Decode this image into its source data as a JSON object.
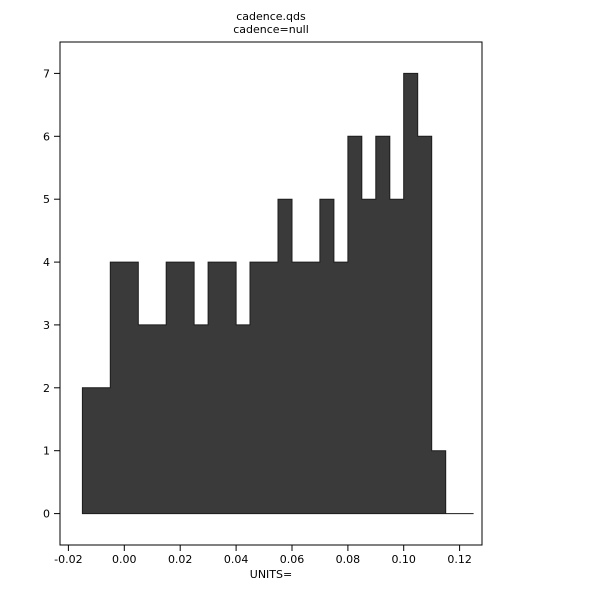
{
  "title": {
    "line1": "cadence.qds",
    "line2": "cadence=null"
  },
  "chart_data": {
    "type": "bar",
    "subtype": "histogram",
    "title": "cadence.qds",
    "subtitle": "cadence=null",
    "xlabel": "UNITS=",
    "ylabel": "",
    "bin_width": 0.005,
    "bin_edges": [
      -0.015,
      -0.01,
      -0.005,
      0.0,
      0.005,
      0.01,
      0.015,
      0.02,
      0.025,
      0.03,
      0.035,
      0.04,
      0.045,
      0.05,
      0.055,
      0.06,
      0.065,
      0.07,
      0.075,
      0.08,
      0.085,
      0.09,
      0.095,
      0.1,
      0.105,
      0.11,
      0.115,
      0.12,
      0.125
    ],
    "values": [
      2,
      2,
      4,
      4,
      3,
      3,
      4,
      4,
      3,
      4,
      4,
      3,
      4,
      4,
      5,
      4,
      4,
      5,
      4,
      6,
      5,
      6,
      5,
      7,
      6,
      1,
      0,
      0
    ],
    "x_ticks": [
      {
        "value": -0.02,
        "label": "-0.02"
      },
      {
        "value": 0.0,
        "label": "0.00"
      },
      {
        "value": 0.02,
        "label": "0.02"
      },
      {
        "value": 0.04,
        "label": "0.04"
      },
      {
        "value": 0.06,
        "label": "0.06"
      },
      {
        "value": 0.08,
        "label": "0.08"
      },
      {
        "value": 0.1,
        "label": "0.10"
      },
      {
        "value": 0.12,
        "label": "0.12"
      }
    ],
    "y_ticks": [
      {
        "value": 0,
        "label": "0"
      },
      {
        "value": 1,
        "label": "1"
      },
      {
        "value": 2,
        "label": "2"
      },
      {
        "value": 3,
        "label": "3"
      },
      {
        "value": 4,
        "label": "4"
      },
      {
        "value": 5,
        "label": "5"
      },
      {
        "value": 6,
        "label": "6"
      },
      {
        "value": 7,
        "label": "7"
      }
    ],
    "xlim": [
      -0.023,
      0.128
    ],
    "ylim": [
      -0.5,
      7.5
    ],
    "grid": false,
    "legend": "none",
    "bar_fill": "#3a3a3a",
    "bar_stroke": "#1c1c1c",
    "axis_color": "#000000",
    "background": "#ffffff"
  }
}
